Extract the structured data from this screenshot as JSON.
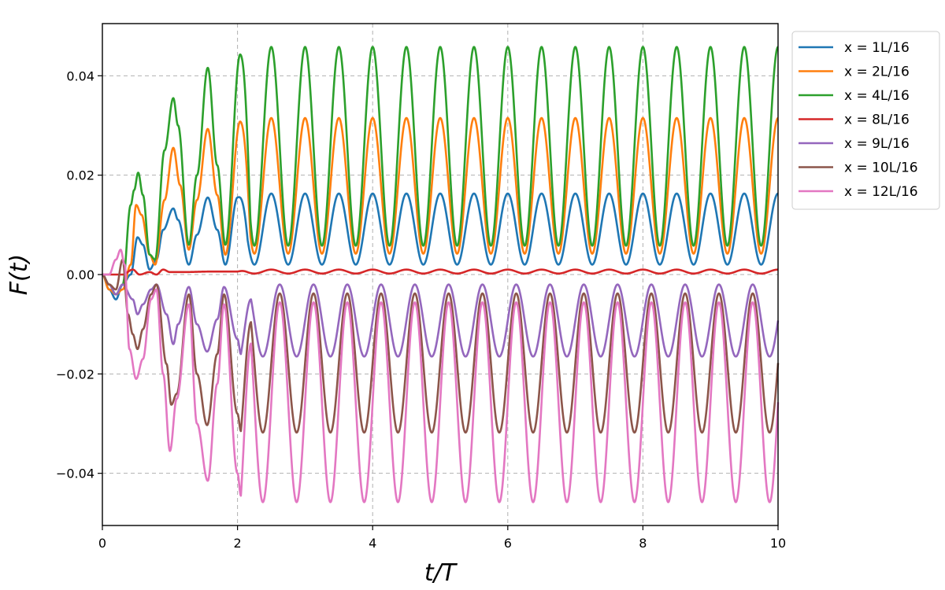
{
  "chart_data": {
    "type": "line",
    "title": "",
    "xlabel": "t/T",
    "ylabel": "F(t)",
    "xlim": [
      0,
      10
    ],
    "ylim": [
      -0.0505,
      0.0505
    ],
    "x_ticks": [
      0,
      2,
      4,
      6,
      8,
      10
    ],
    "x_tick_labels": [
      "0",
      "2",
      "4",
      "6",
      "8",
      "10"
    ],
    "y_ticks": [
      -0.04,
      -0.02,
      0.0,
      0.02,
      0.04
    ],
    "y_tick_labels": [
      "−0.04",
      "−0.02",
      "0.00",
      "0.02",
      "0.04"
    ],
    "grid": true,
    "grid_style": "dashed",
    "legend_position": "outside-top-right",
    "oscillation_period": 0.5,
    "series": [
      {
        "name": "x = 1L/16",
        "math_name": "x = 1L/16",
        "color": "#1f77b4",
        "steady_min": 0.002,
        "steady_max": 0.0163,
        "phase": 0.0,
        "transient": [
          [
            0,
            0
          ],
          [
            0.1,
            -0.003
          ],
          [
            0.2,
            -0.005
          ],
          [
            0.3,
            -0.002
          ],
          [
            0.42,
            0.0
          ],
          [
            0.52,
            0.0075
          ],
          [
            0.6,
            0.006
          ],
          [
            0.7,
            0.001
          ],
          [
            0.8,
            0.003
          ],
          [
            0.9,
            0.009
          ],
          [
            1.05,
            0.0133
          ],
          [
            1.12,
            0.011
          ],
          [
            1.28,
            0.002
          ],
          [
            1.4,
            0.008
          ],
          [
            1.56,
            0.0155
          ],
          [
            1.7,
            0.009
          ],
          [
            1.82,
            0.002
          ],
          [
            2.0,
            0.0155
          ]
        ]
      },
      {
        "name": "x = 2L/16",
        "math_name": "x = 2L/16",
        "color": "#ff7f0e",
        "steady_min": 0.0042,
        "steady_max": 0.0315,
        "phase": 0.0,
        "transient": [
          [
            0,
            0
          ],
          [
            0.1,
            -0.003
          ],
          [
            0.2,
            -0.004
          ],
          [
            0.3,
            -0.003
          ],
          [
            0.42,
            0.002
          ],
          [
            0.5,
            0.014
          ],
          [
            0.58,
            0.012
          ],
          [
            0.7,
            0.004
          ],
          [
            0.78,
            0.002
          ],
          [
            0.92,
            0.015
          ],
          [
            1.05,
            0.0255
          ],
          [
            1.15,
            0.018
          ],
          [
            1.28,
            0.005
          ],
          [
            1.4,
            0.015
          ],
          [
            1.56,
            0.0293
          ],
          [
            1.7,
            0.016
          ],
          [
            1.82,
            0.004
          ],
          [
            2.04,
            0.0308
          ]
        ]
      },
      {
        "name": "x = 4L/16",
        "math_name": "x = 4L/16",
        "color": "#2ca02c",
        "steady_min": 0.0058,
        "steady_max": 0.0458,
        "phase": 0.0,
        "transient": [
          [
            0,
            0
          ],
          [
            0.1,
            -0.002
          ],
          [
            0.2,
            -0.004
          ],
          [
            0.3,
            -0.002
          ],
          [
            0.42,
            0.014
          ],
          [
            0.47,
            0.017
          ],
          [
            0.53,
            0.0205
          ],
          [
            0.6,
            0.016
          ],
          [
            0.7,
            0.004
          ],
          [
            0.78,
            0.003
          ],
          [
            0.92,
            0.025
          ],
          [
            1.05,
            0.0355
          ],
          [
            1.12,
            0.03
          ],
          [
            1.28,
            0.006
          ],
          [
            1.4,
            0.02
          ],
          [
            1.56,
            0.0416
          ],
          [
            1.7,
            0.022
          ],
          [
            1.82,
            0.006
          ],
          [
            2.04,
            0.0443
          ]
        ]
      },
      {
        "name": "x = 8L/16",
        "math_name": "x = 8L/16",
        "color": "#d62728",
        "steady_min": 0.0002,
        "steady_max": 0.001,
        "phase": 0.0,
        "transient": [
          [
            0,
            0
          ],
          [
            0.3,
            0.0
          ],
          [
            0.45,
            0.001
          ],
          [
            0.55,
            0.0
          ],
          [
            0.7,
            0.0005
          ],
          [
            0.8,
            0.0
          ],
          [
            0.9,
            0.001
          ],
          [
            1.0,
            0.0005
          ],
          [
            1.2,
            0.0005
          ],
          [
            1.6,
            0.0006
          ],
          [
            2.0,
            0.0006
          ]
        ]
      },
      {
        "name": "x = 9L/16",
        "math_name": "x = 9L/16",
        "color": "#9467bd",
        "steady_min": -0.0165,
        "steady_max": -0.002,
        "phase": 0.25,
        "transient": [
          [
            0,
            0
          ],
          [
            0.1,
            -0.002
          ],
          [
            0.2,
            -0.004
          ],
          [
            0.3,
            -0.002
          ],
          [
            0.45,
            -0.005
          ],
          [
            0.52,
            -0.008
          ],
          [
            0.6,
            -0.006
          ],
          [
            0.72,
            -0.003
          ],
          [
            0.8,
            -0.002
          ],
          [
            0.95,
            -0.008
          ],
          [
            1.05,
            -0.014
          ],
          [
            1.12,
            -0.01
          ],
          [
            1.28,
            -0.0025
          ],
          [
            1.4,
            -0.01
          ],
          [
            1.55,
            -0.0155
          ],
          [
            1.7,
            -0.009
          ],
          [
            1.8,
            -0.0025
          ],
          [
            2.0,
            -0.013
          ],
          [
            2.05,
            -0.016
          ]
        ]
      },
      {
        "name": "x = 10L/16",
        "math_name": "x = 10L/16",
        "color": "#8c564b",
        "steady_min": -0.0318,
        "steady_max": -0.0038,
        "phase": 0.25,
        "transient": [
          [
            0,
            0
          ],
          [
            0.1,
            -0.002
          ],
          [
            0.2,
            -0.003
          ],
          [
            0.3,
            0.003
          ],
          [
            0.38,
            -0.008
          ],
          [
            0.45,
            -0.012
          ],
          [
            0.52,
            -0.015
          ],
          [
            0.6,
            -0.011
          ],
          [
            0.72,
            -0.004
          ],
          [
            0.8,
            -0.002
          ],
          [
            0.95,
            -0.018
          ],
          [
            1.02,
            -0.0262
          ],
          [
            1.1,
            -0.024
          ],
          [
            1.28,
            -0.004
          ],
          [
            1.4,
            -0.02
          ],
          [
            1.55,
            -0.0303
          ],
          [
            1.7,
            -0.016
          ],
          [
            1.8,
            -0.004
          ],
          [
            2.0,
            -0.028
          ],
          [
            2.05,
            -0.0315
          ]
        ]
      },
      {
        "name": "x = 12L/16",
        "math_name": "x = 12L/16",
        "color": "#e377c2",
        "steady_min": -0.0458,
        "steady_max": -0.0056,
        "phase": 0.25,
        "transient": [
          [
            0,
            0
          ],
          [
            0.1,
            0.0
          ],
          [
            0.2,
            0.003
          ],
          [
            0.27,
            0.005
          ],
          [
            0.33,
            0.002
          ],
          [
            0.4,
            -0.015
          ],
          [
            0.5,
            -0.021
          ],
          [
            0.6,
            -0.017
          ],
          [
            0.72,
            -0.005
          ],
          [
            0.8,
            -0.003
          ],
          [
            0.9,
            -0.02
          ],
          [
            1.0,
            -0.0355
          ],
          [
            1.1,
            -0.025
          ],
          [
            1.28,
            -0.006
          ],
          [
            1.4,
            -0.03
          ],
          [
            1.56,
            -0.0415
          ],
          [
            1.7,
            -0.022
          ],
          [
            1.8,
            -0.006
          ],
          [
            2.0,
            -0.04
          ],
          [
            2.05,
            -0.0445
          ]
        ]
      }
    ]
  }
}
